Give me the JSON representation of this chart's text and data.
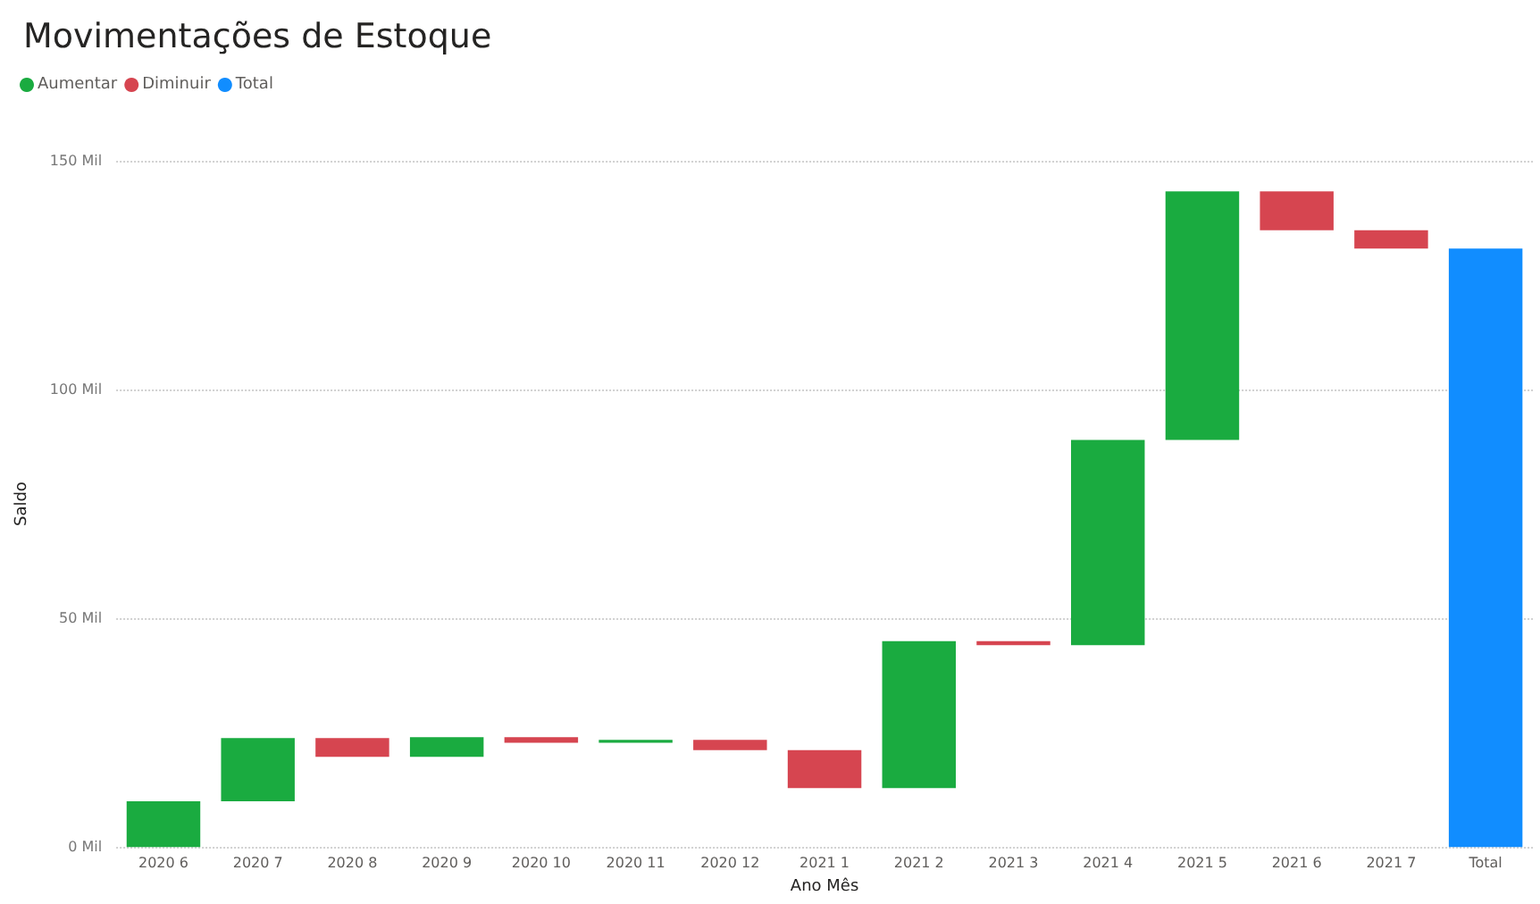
{
  "chart_data": {
    "type": "bar",
    "title": "Movimentações de Estoque",
    "xlabel": "Ano Mês",
    "ylabel": "Saldo",
    "categories": [
      "2020 6",
      "2020 7",
      "2020 8",
      "2020 9",
      "2020 10",
      "2020 11",
      "2020 12",
      "2021 1",
      "2021 2",
      "2021 3",
      "2021 4",
      "2021 5",
      "2021 6",
      "2021 7",
      "Total"
    ],
    "series": [
      {
        "name": "Aumentar",
        "color": "#1aab40",
        "values": [
          10,
          13.8,
          null,
          4.3,
          null,
          0.6,
          null,
          null,
          32.1,
          null,
          44.9,
          54.3,
          null,
          null,
          null
        ],
        "base": [
          0,
          10,
          null,
          19.7,
          null,
          22.8,
          null,
          null,
          12.9,
          null,
          44.1,
          89.0,
          null,
          null,
          null
        ]
      },
      {
        "name": "Diminuir",
        "color": "#d64550",
        "values": [
          null,
          null,
          -4.1,
          null,
          -1.2,
          null,
          -2.2,
          -8.3,
          null,
          -0.9,
          null,
          null,
          -8.5,
          -4.0,
          null
        ],
        "base": [
          null,
          null,
          23.8,
          null,
          24.0,
          null,
          23.4,
          21.2,
          null,
          45.0,
          null,
          null,
          143.3,
          134.8,
          null
        ]
      },
      {
        "name": "Total",
        "color": "#118dff",
        "values": [
          null,
          null,
          null,
          null,
          null,
          null,
          null,
          null,
          null,
          null,
          null,
          null,
          null,
          null,
          130.8
        ],
        "base": [
          null,
          null,
          null,
          null,
          null,
          null,
          null,
          null,
          null,
          null,
          null,
          null,
          null,
          null,
          0
        ]
      }
    ],
    "ylim": [
      0,
      150
    ],
    "yticks": [
      {
        "value": 0,
        "label": "0 Mil"
      },
      {
        "value": 50,
        "label": "50 Mil"
      },
      {
        "value": 100,
        "label": "100 Mil"
      },
      {
        "value": 150,
        "label": "150 Mil"
      }
    ],
    "grid": "y",
    "legend": "top left"
  }
}
